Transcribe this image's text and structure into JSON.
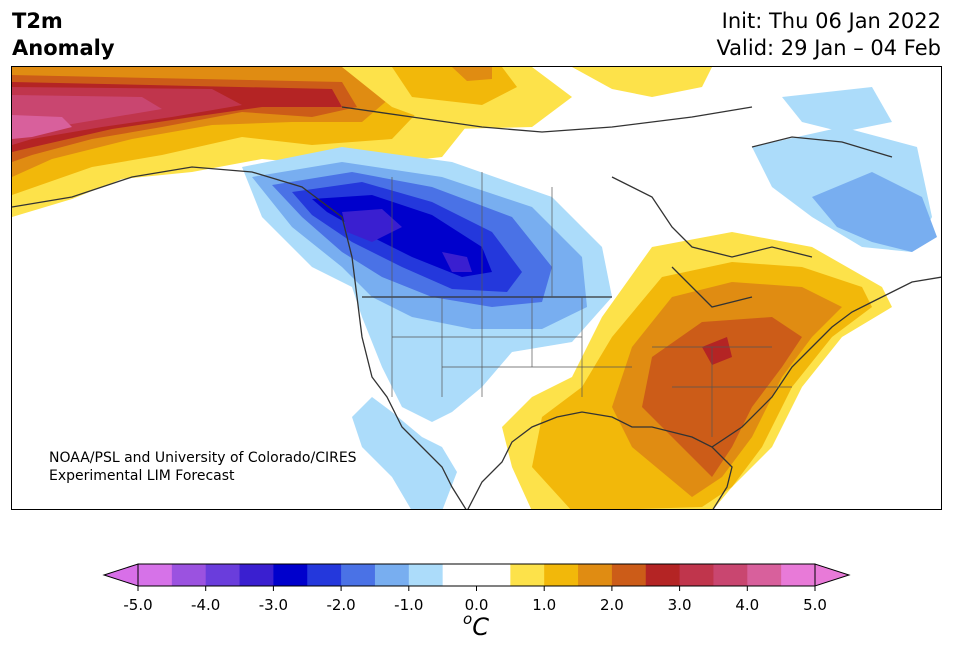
{
  "title": {
    "left_line1": "T2m",
    "left_line2": "Anomaly",
    "init": "Init: Thu 06 Jan 2022",
    "valid": "Valid: 29 Jan – 04 Feb"
  },
  "credit": {
    "line1": "NOAA/PSL and University of Colorado/CIRES",
    "line2": "Experimental LIM Forecast"
  },
  "colorbar": {
    "unit_base": "C",
    "unit_sup": "o",
    "ticks": [
      "-5.0",
      "-4.0",
      "-3.0",
      "-2.0",
      "-1.0",
      "0.0",
      "1.0",
      "2.0",
      "3.0",
      "4.0",
      "5.0"
    ],
    "under_color": "#d86fe8",
    "over_color": "#e87ad8",
    "colors": [
      "#d672e8",
      "#9b52e0",
      "#6a3ddc",
      "#3a1fd0",
      "#0000cc",
      "#2438dc",
      "#4a72e6",
      "#78aef0",
      "#acdcfa",
      "#ffffff",
      "#ffffff",
      "#fde24a",
      "#f2b80a",
      "#e08c12",
      "#cc5c18",
      "#b42424",
      "#c0354c",
      "#c94670",
      "#d8609c",
      "#e87ad8"
    ]
  },
  "map": {
    "region": "North America",
    "field": "2m temperature anomaly"
  }
}
